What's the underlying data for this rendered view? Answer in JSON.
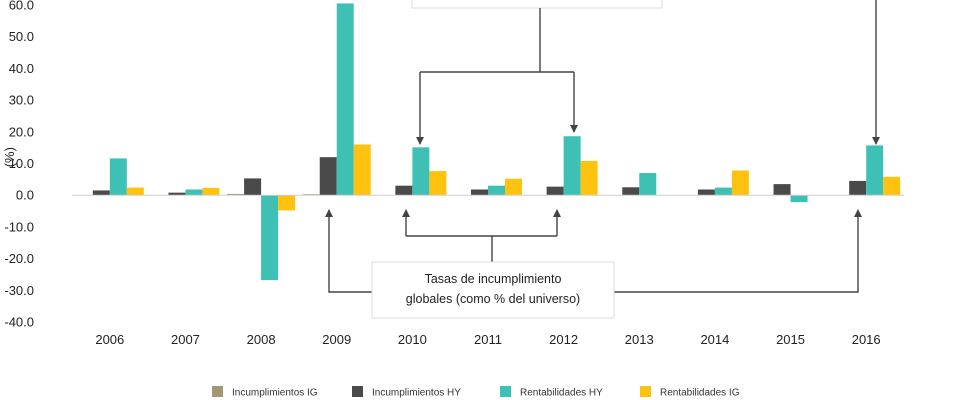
{
  "chart_data": {
    "type": "bar",
    "ylabel": "(%)",
    "ylim": [
      -40,
      60
    ],
    "yticks": [
      "60.0",
      "50.0",
      "40.0",
      "30.0",
      "20.0",
      "10.0",
      "0.0",
      "-10.0",
      "-20.0",
      "-30.0",
      "-40.0"
    ],
    "categories": [
      "2006",
      "2007",
      "2008",
      "2009",
      "2010",
      "2011",
      "2012",
      "2013",
      "2014",
      "2015",
      "2016"
    ],
    "series": [
      {
        "name": "Incumplimientos IG",
        "color": "#a39774",
        "values": [
          0,
          0,
          0.4,
          0.3,
          0,
          0,
          0,
          0,
          0,
          0,
          0
        ]
      },
      {
        "name": "Incumplimientos HY",
        "color": "#4a4a4a",
        "values": [
          1.5,
          0.8,
          5.3,
          12,
          3,
          1.8,
          2.7,
          2.5,
          1.8,
          3.5,
          4.5
        ]
      },
      {
        "name": "Rentabilidades HY",
        "color": "#3ec1b4",
        "values": [
          11.6,
          1.8,
          -26.8,
          60.5,
          15.1,
          3.0,
          18.6,
          7.0,
          2.4,
          -2.2,
          15.7
        ]
      },
      {
        "name": "Rentabilidades IG",
        "color": "#ffc20e",
        "values": [
          2.4,
          2.3,
          -4.8,
          16.0,
          7.6,
          5.2,
          10.8,
          0,
          7.8,
          0,
          5.8
        ]
      }
    ],
    "annotations": [
      {
        "text_lines": [
          "Tasas de incumplimiento",
          "globales (como % del universo)"
        ]
      }
    ],
    "legend_position": "bottom",
    "grid": false
  }
}
